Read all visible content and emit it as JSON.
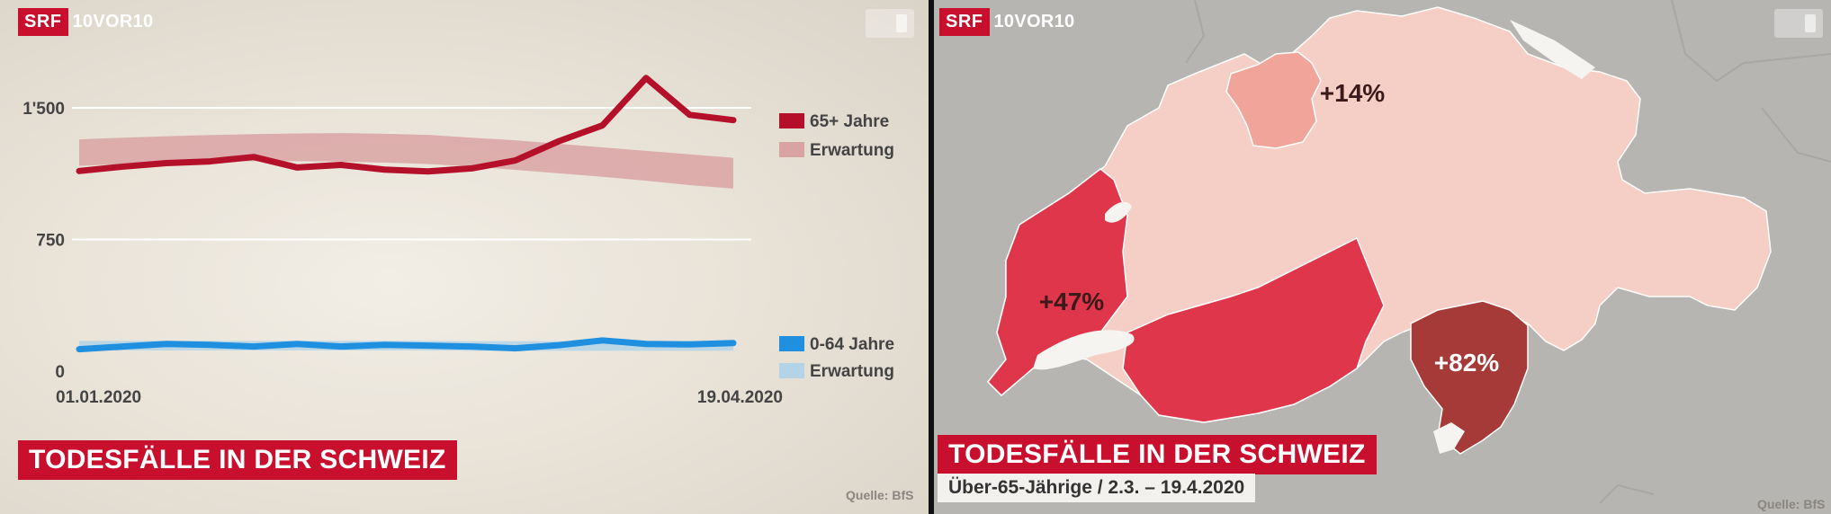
{
  "left_panel": {
    "logo": {
      "brand": "SRF",
      "show": "10VOR10"
    },
    "headline": "TODESFÄLLE IN DER SCHWEIZ",
    "source": "Quelle: BfS"
  },
  "right_panel": {
    "logo": {
      "brand": "SRF",
      "show": "10VOR10"
    },
    "headline": "TODESFÄLLE IN DER SCHWEIZ",
    "subline": "Über-65-Jährige / 2.3. – 19.4.2020",
    "source": "Quelle: BfS"
  },
  "colors": {
    "srf_red": "#c8102e",
    "line_65": "#b5102a",
    "band_65": "#d9a3a3",
    "line_064": "#1f8fe0",
    "band_064": "#b3d4e6",
    "map_light": "#f5cfc6",
    "map_mid": "#f0a49a",
    "map_strong": "#e0364c",
    "map_darkest": "#a53a38"
  },
  "chart_data": [
    {
      "type": "line",
      "x_start_label": "01.01.2020",
      "x_end_label": "19.04.2020",
      "yticks": [
        0,
        750,
        1500
      ],
      "ytick_labels": [
        "0",
        "750",
        "1'500"
      ],
      "ylim": [
        0,
        1750
      ],
      "grid": true,
      "legend_position": "right",
      "series": [
        {
          "name": "65+ Jahre",
          "kind": "line",
          "values": [
            1140,
            1165,
            1185,
            1195,
            1220,
            1160,
            1175,
            1148,
            1138,
            1155,
            1200,
            1310,
            1400,
            1670,
            1460,
            1430
          ]
        },
        {
          "name": "Erwartung",
          "kind": "band",
          "upper": [
            1320,
            1330,
            1338,
            1345,
            1350,
            1354,
            1356,
            1352,
            1346,
            1330,
            1315,
            1295,
            1275,
            1255,
            1235,
            1215
          ],
          "lower": [
            1170,
            1180,
            1188,
            1193,
            1196,
            1196,
            1194,
            1188,
            1180,
            1165,
            1147,
            1127,
            1107,
            1085,
            1060,
            1040
          ]
        },
        {
          "name": "0-64 Jahre",
          "kind": "line",
          "values": [
            125,
            140,
            155,
            150,
            140,
            155,
            140,
            150,
            145,
            140,
            130,
            148,
            175,
            155,
            152,
            160
          ]
        },
        {
          "name": "Erwartung",
          "kind": "band",
          "upper": [
            172,
            172,
            172,
            172,
            172,
            172,
            172,
            172,
            172,
            170,
            170,
            170,
            170,
            170,
            170,
            170
          ],
          "lower": [
            118,
            118,
            118,
            118,
            118,
            118,
            118,
            118,
            118,
            116,
            116,
            116,
            116,
            116,
            116,
            116
          ]
        }
      ]
    },
    {
      "type": "map",
      "regions": [
        {
          "label": "+14%",
          "value": 14,
          "level": "mid"
        },
        {
          "label": "+47%",
          "value": 47,
          "level": "strong"
        },
        {
          "label": "+82%",
          "value": 82,
          "level": "darkest"
        }
      ]
    }
  ]
}
